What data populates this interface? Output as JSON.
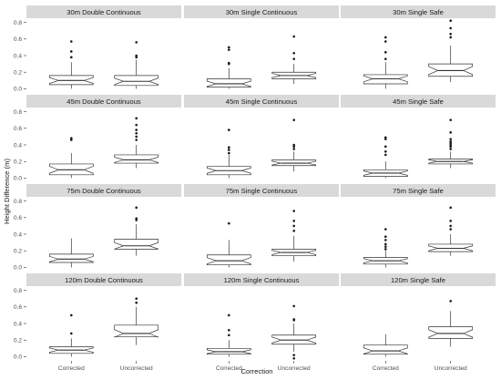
{
  "chart_data": {
    "type": "box",
    "xlabel": "Correction",
    "ylabel": "Height Difference (m)",
    "categories": [
      "Corrected",
      "Uncorrected"
    ],
    "ylim": [
      -0.05,
      0.85
    ],
    "yticks": [
      0.0,
      0.2,
      0.4,
      0.6,
      0.8
    ],
    "ytick_labels": [
      "0.0",
      "0.2",
      "0.4",
      "0.6",
      "0.8"
    ],
    "notched": true,
    "grid": false,
    "facets": [
      {
        "title": "30m Double Continuous",
        "boxes": [
          {
            "category": "Corrected",
            "whisker_low": 0.0,
            "q1": 0.05,
            "median": 0.1,
            "q3": 0.16,
            "whisker_high": 0.32,
            "outliers": [
              0.38,
              0.45,
              0.57
            ]
          },
          {
            "category": "Uncorrected",
            "whisker_low": 0.0,
            "q1": 0.04,
            "median": 0.09,
            "q3": 0.16,
            "whisker_high": 0.35,
            "outliers": [
              0.38,
              0.4,
              0.56
            ]
          }
        ]
      },
      {
        "title": "30m Single Continuous",
        "boxes": [
          {
            "category": "Corrected",
            "whisker_low": 0.0,
            "q1": 0.02,
            "median": 0.06,
            "q3": 0.12,
            "whisker_high": 0.25,
            "outliers": [
              0.3,
              0.31,
              0.47,
              0.5
            ]
          },
          {
            "category": "Uncorrected",
            "whisker_low": 0.06,
            "q1": 0.12,
            "median": 0.16,
            "q3": 0.2,
            "whisker_high": 0.3,
            "outliers": [
              0.36,
              0.43,
              0.63
            ]
          }
        ]
      },
      {
        "title": "30m Single Safe",
        "boxes": [
          {
            "category": "Corrected",
            "whisker_low": 0.0,
            "q1": 0.06,
            "median": 0.12,
            "q3": 0.17,
            "whisker_high": 0.32,
            "outliers": [
              0.36,
              0.44,
              0.57,
              0.62
            ]
          },
          {
            "category": "Uncorrected",
            "whisker_low": 0.08,
            "q1": 0.15,
            "median": 0.22,
            "q3": 0.3,
            "whisker_high": 0.52,
            "outliers": [
              0.62,
              0.66,
              0.73,
              0.82
            ]
          }
        ]
      },
      {
        "title": "45m Double Continuous",
        "boxes": [
          {
            "category": "Corrected",
            "whisker_low": 0.0,
            "q1": 0.04,
            "median": 0.1,
            "q3": 0.17,
            "whisker_high": 0.3,
            "outliers": [
              0.46,
              0.48
            ]
          },
          {
            "category": "Uncorrected",
            "whisker_low": 0.12,
            "q1": 0.18,
            "median": 0.22,
            "q3": 0.28,
            "whisker_high": 0.4,
            "outliers": [
              0.46,
              0.5,
              0.54,
              0.58,
              0.64,
              0.72
            ]
          }
        ]
      },
      {
        "title": "45m Single Continuous",
        "boxes": [
          {
            "category": "Corrected",
            "whisker_low": 0.0,
            "q1": 0.04,
            "median": 0.09,
            "q3": 0.14,
            "whisker_high": 0.28,
            "outliers": [
              0.3,
              0.34,
              0.37,
              0.58
            ]
          },
          {
            "category": "Uncorrected",
            "whisker_low": 0.08,
            "q1": 0.15,
            "median": 0.18,
            "q3": 0.22,
            "whisker_high": 0.32,
            "outliers": [
              0.35,
              0.38,
              0.4,
              0.7
            ]
          }
        ]
      },
      {
        "title": "45m Single Safe",
        "boxes": [
          {
            "category": "Corrected",
            "whisker_low": 0.0,
            "q1": 0.02,
            "median": 0.06,
            "q3": 0.1,
            "whisker_high": 0.2,
            "outliers": [
              0.28,
              0.32,
              0.38,
              0.47,
              0.49
            ]
          },
          {
            "category": "Uncorrected",
            "whisker_low": 0.12,
            "q1": 0.17,
            "median": 0.2,
            "q3": 0.23,
            "whisker_high": 0.32,
            "outliers": [
              0.35,
              0.38,
              0.4,
              0.42,
              0.44,
              0.47,
              0.55,
              0.7
            ]
          }
        ]
      },
      {
        "title": "75m Double Continuous",
        "boxes": [
          {
            "category": "Corrected",
            "whisker_low": 0.0,
            "q1": 0.06,
            "median": 0.1,
            "q3": 0.16,
            "whisker_high": 0.35,
            "outliers": []
          },
          {
            "category": "Uncorrected",
            "whisker_low": 0.14,
            "q1": 0.22,
            "median": 0.26,
            "q3": 0.34,
            "whisker_high": 0.52,
            "outliers": [
              0.57,
              0.59,
              0.72
            ]
          }
        ]
      },
      {
        "title": "75m Single Continuous",
        "boxes": [
          {
            "category": "Corrected",
            "whisker_low": 0.0,
            "q1": 0.03,
            "median": 0.08,
            "q3": 0.15,
            "whisker_high": 0.33,
            "outliers": [
              0.53
            ]
          },
          {
            "category": "Uncorrected",
            "whisker_low": 0.07,
            "q1": 0.14,
            "median": 0.18,
            "q3": 0.22,
            "whisker_high": 0.38,
            "outliers": [
              0.44,
              0.5,
              0.56,
              0.68
            ]
          }
        ]
      },
      {
        "title": "75m Single Safe",
        "boxes": [
          {
            "category": "Corrected",
            "whisker_low": 0.0,
            "q1": 0.04,
            "median": 0.08,
            "q3": 0.12,
            "whisker_high": 0.2,
            "outliers": [
              0.22,
              0.25,
              0.28,
              0.33,
              0.37,
              0.46
            ]
          },
          {
            "category": "Uncorrected",
            "whisker_low": 0.14,
            "q1": 0.19,
            "median": 0.23,
            "q3": 0.28,
            "whisker_high": 0.4,
            "outliers": [
              0.46,
              0.5,
              0.56,
              0.72
            ]
          }
        ]
      },
      {
        "title": "120m Double Continuous",
        "boxes": [
          {
            "category": "Corrected",
            "whisker_low": 0.0,
            "q1": 0.04,
            "median": 0.08,
            "q3": 0.12,
            "whisker_high": 0.22,
            "outliers": [
              0.28,
              0.5
            ]
          },
          {
            "category": "Uncorrected",
            "whisker_low": 0.14,
            "q1": 0.24,
            "median": 0.28,
            "q3": 0.38,
            "whisker_high": 0.6,
            "outliers": [
              0.65,
              0.7
            ]
          }
        ]
      },
      {
        "title": "120m Single Continuous",
        "boxes": [
          {
            "category": "Corrected",
            "whisker_low": 0.0,
            "q1": 0.03,
            "median": 0.06,
            "q3": 0.1,
            "whisker_high": 0.2,
            "outliers": [
              0.26,
              0.32,
              0.5
            ]
          },
          {
            "category": "Uncorrected",
            "whisker_low": 0.06,
            "q1": 0.15,
            "median": 0.2,
            "q3": 0.26,
            "whisker_high": 0.4,
            "outliers": [
              0.44,
              0.45,
              0.61,
              0.02,
              -0.02
            ]
          }
        ]
      },
      {
        "title": "120m Single Safe",
        "boxes": [
          {
            "category": "Corrected",
            "whisker_low": 0.0,
            "q1": 0.03,
            "median": 0.07,
            "q3": 0.14,
            "whisker_high": 0.27,
            "outliers": []
          },
          {
            "category": "Uncorrected",
            "whisker_low": 0.12,
            "q1": 0.22,
            "median": 0.28,
            "q3": 0.36,
            "whisker_high": 0.55,
            "outliers": [
              0.67
            ]
          }
        ]
      }
    ]
  },
  "colors": {
    "strip_background": "#d9d9d9",
    "panel_background": "#ffffff",
    "box_stroke": "#333333",
    "outlier_fill": "#1a1a1a",
    "tick_text": "#4d4d4d",
    "title_text": "#1a1a1a"
  }
}
